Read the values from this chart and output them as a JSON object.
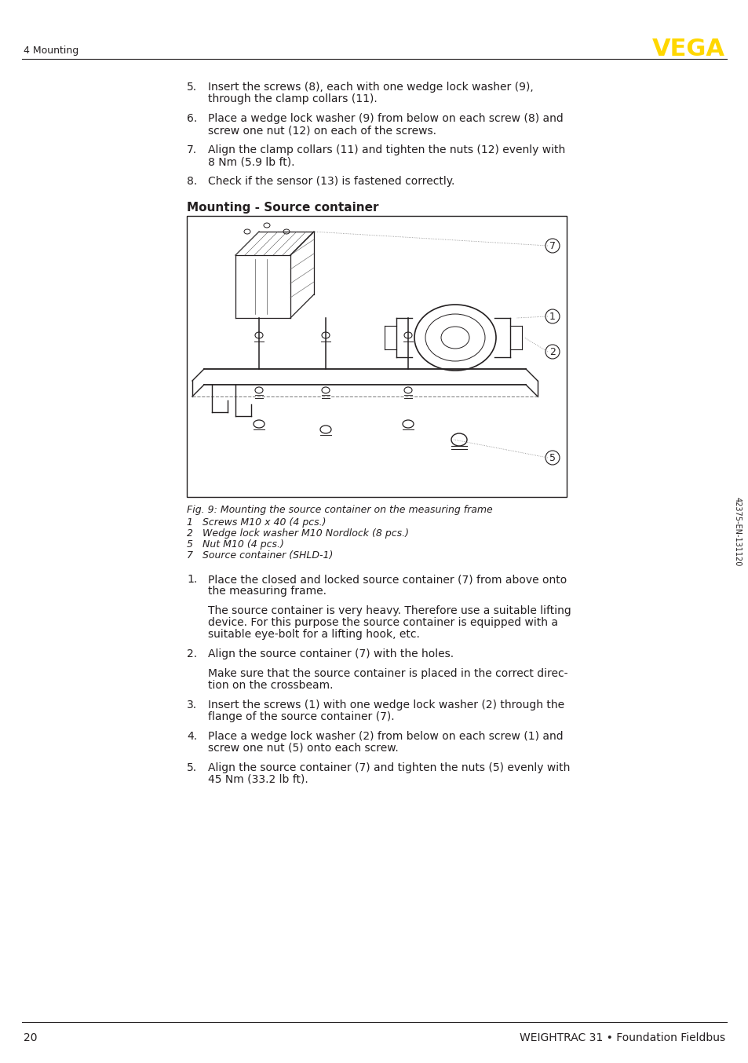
{
  "page_bg": "#ffffff",
  "header_section": "4 Mounting",
  "vega_color": "#FFD700",
  "footer_page": "20",
  "footer_text": "WEIGHTRAC 31 • Foundation Fieldbus",
  "side_text": "42375-EN-131120",
  "numbered_items_top": [
    {
      "num": "5.",
      "line1": "Insert the screws (8), each with one wedge lock washer (9),",
      "line2": "through the clamp collars (11)."
    },
    {
      "num": "6.",
      "line1": "Place a wedge lock washer (9) from below on each screw (8) and",
      "line2": "screw one nut (12) on each of the screws."
    },
    {
      "num": "7.",
      "line1": "Align the clamp collars (11) and tighten the nuts (12) evenly with",
      "line2": "8 Nm (5.9 lb ft)."
    },
    {
      "num": "8.",
      "line1": "Check if the sensor (13) is fastened correctly.",
      "line2": ""
    }
  ],
  "section_title": "Mounting - Source container",
  "figure_caption": "Fig. 9: Mounting the source container on the measuring frame",
  "figure_legend": [
    "1   Screws M10 x 40 (4 pcs.)",
    "2   Wedge lock washer M10 Nordlock (8 pcs.)",
    "5   Nut M10 (4 pcs.)",
    "7   Source container (SHLD-1)"
  ],
  "numbered_items_bottom": [
    {
      "type": "num",
      "num": "1.",
      "line1": "Place the closed and locked source container (7) from above onto",
      "line2": "the measuring frame."
    },
    {
      "type": "indent",
      "lines": [
        "The source container is very heavy. Therefore use a suitable lifting",
        "device. For this purpose the source container is equipped with a",
        "suitable eye-bolt for a lifting hook, etc."
      ]
    },
    {
      "type": "num",
      "num": "2.",
      "line1": "Align the source container (7) with the holes.",
      "line2": ""
    },
    {
      "type": "indent",
      "lines": [
        "Make sure that the source container is placed in the correct direc-",
        "tion on the crossbeam."
      ]
    },
    {
      "type": "num",
      "num": "3.",
      "line1": "Insert the screws (1) with one wedge lock washer (2) through the",
      "line2": "flange of the source container (7)."
    },
    {
      "type": "num",
      "num": "4.",
      "line1": "Place a wedge lock washer (2) from below on each screw (1) and",
      "line2": "screw one nut (5) onto each screw."
    },
    {
      "type": "num",
      "num": "5.",
      "line1": "Align the source container (7) and tighten the nuts (5) evenly with",
      "line2": "45 Nm (33.2 lb ft)."
    }
  ],
  "text_color": "#231f20",
  "line_color": "#231f20"
}
